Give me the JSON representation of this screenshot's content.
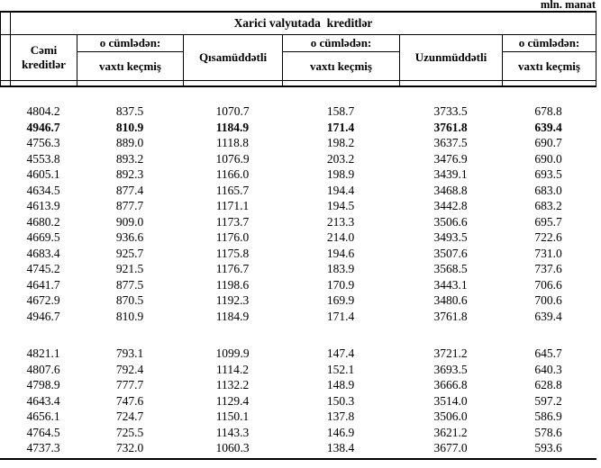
{
  "unit_label": "mln. manat",
  "table": {
    "title": "Xarici valyutada  kreditlər",
    "headers": {
      "total_credits": "Cəmi kreditlər",
      "including": "o cümlədən:",
      "overdue": "vaxtı keçmiş",
      "short_term": "Qısamüddətli",
      "long_term": "Uzunmüddətli"
    },
    "columns": [
      "Cəmi kreditlər",
      "o cümlədən: vaxtı keçmiş",
      "Qısamüddətli",
      "o cümlədən: vaxtı keçmiş",
      "Uzunmüddətli",
      "o cümlədən: vaxtı keçmiş"
    ],
    "highlight": {
      "group_index": 0,
      "row_index": 1,
      "style": "bold"
    },
    "groups": [
      {
        "rows": [
          [
            "4804.2",
            "837.5",
            "1070.7",
            "158.7",
            "3733.5",
            "678.8"
          ],
          [
            "4946.7",
            "810.9",
            "1184.9",
            "171.4",
            "3761.8",
            "639.4"
          ],
          [
            "4756.3",
            "889.0",
            "1118.8",
            "198.2",
            "3637.5",
            "690.7"
          ],
          [
            "4553.8",
            "893.2",
            "1076.9",
            "203.2",
            "3476.9",
            "690.0"
          ],
          [
            "4605.1",
            "892.3",
            "1166.0",
            "198.9",
            "3439.1",
            "693.5"
          ],
          [
            "4634.5",
            "877.4",
            "1165.7",
            "194.4",
            "3468.8",
            "683.0"
          ],
          [
            "4613.9",
            "877.7",
            "1171.1",
            "194.5",
            "3442.8",
            "683.2"
          ],
          [
            "4680.2",
            "909.0",
            "1173.7",
            "213.3",
            "3506.6",
            "695.7"
          ],
          [
            "4669.5",
            "936.6",
            "1176.0",
            "214.0",
            "3493.5",
            "722.6"
          ],
          [
            "4683.4",
            "925.7",
            "1175.8",
            "194.6",
            "3507.6",
            "731.0"
          ],
          [
            "4745.2",
            "921.5",
            "1176.7",
            "183.9",
            "3568.5",
            "737.6"
          ],
          [
            "4641.7",
            "877.5",
            "1198.6",
            "170.9",
            "3443.1",
            "706.6"
          ],
          [
            "4672.9",
            "870.5",
            "1192.3",
            "169.9",
            "3480.6",
            "700.6"
          ],
          [
            "4946.7",
            "810.9",
            "1184.9",
            "171.4",
            "3761.8",
            "639.4"
          ]
        ]
      },
      {
        "rows": [
          [
            "4821.1",
            "793.1",
            "1099.9",
            "147.4",
            "3721.2",
            "645.7"
          ],
          [
            "4807.6",
            "792.4",
            "1114.2",
            "152.1",
            "3693.5",
            "640.3"
          ],
          [
            "4798.9",
            "777.7",
            "1132.2",
            "148.9",
            "3666.8",
            "628.8"
          ],
          [
            "4643.4",
            "747.6",
            "1129.4",
            "150.3",
            "3514.0",
            "597.2"
          ],
          [
            "4656.1",
            "724.7",
            "1150.1",
            "137.8",
            "3506.0",
            "586.9"
          ],
          [
            "4764.5",
            "725.5",
            "1143.3",
            "146.9",
            "3621.2",
            "578.6"
          ],
          [
            "4737.3",
            "732.0",
            "1060.3",
            "138.4",
            "3677.0",
            "593.6"
          ]
        ]
      }
    ]
  }
}
